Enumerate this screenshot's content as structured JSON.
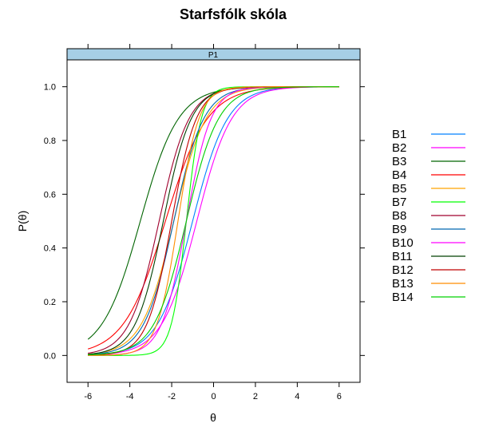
{
  "chart_data": {
    "type": "line",
    "title": "Starfsfólk skóla",
    "panel_label": "P1",
    "xlabel": "θ",
    "ylabel": "P(θ)",
    "xlim": [
      -7,
      7
    ],
    "ylim": [
      -0.1,
      1.1
    ],
    "x_ticks": [
      -6,
      -4,
      -2,
      0,
      2,
      4,
      6
    ],
    "y_ticks": [
      0.0,
      0.2,
      0.4,
      0.6,
      0.8,
      1.0
    ],
    "x_tick_labels": [
      "-6",
      "-4",
      "-2",
      "0",
      "2",
      "4",
      "6"
    ],
    "y_tick_labels": [
      "0.0",
      "0.2",
      "0.4",
      "0.6",
      "0.8",
      "1.0"
    ],
    "x_range": [
      -6,
      6
    ],
    "legend_position": "right",
    "series": [
      {
        "name": "B1",
        "color": "#0080ff",
        "a": 1.2,
        "b": -1.0
      },
      {
        "name": "B2",
        "color": "#ff00ff",
        "a": 1.2,
        "b": -0.8
      },
      {
        "name": "B3",
        "color": "#006400",
        "a": 1.1,
        "b": -3.5
      },
      {
        "name": "B4",
        "color": "#ff0000",
        "a": 1.0,
        "b": -2.3
      },
      {
        "name": "B5",
        "color": "#ffa500",
        "a": 1.3,
        "b": -1.9
      },
      {
        "name": "B7",
        "color": "#00ff00",
        "a": 2.8,
        "b": -1.3
      },
      {
        "name": "B8",
        "color": "#a0002d",
        "a": 1.4,
        "b": -2.6
      },
      {
        "name": "B9",
        "color": "#0067b0",
        "a": 1.4,
        "b": -1.9
      },
      {
        "name": "B10",
        "color": "#ff00ff",
        "a": 1.7,
        "b": -1.3
      },
      {
        "name": "B11",
        "color": "#004000",
        "a": 1.5,
        "b": -2.4
      },
      {
        "name": "B12",
        "color": "#c00000",
        "a": 1.7,
        "b": -2.0
      },
      {
        "name": "B13",
        "color": "#ff8c00",
        "a": 2.0,
        "b": -1.7
      },
      {
        "name": "B14",
        "color": "#00d000",
        "a": 1.3,
        "b": -1.3
      }
    ]
  }
}
